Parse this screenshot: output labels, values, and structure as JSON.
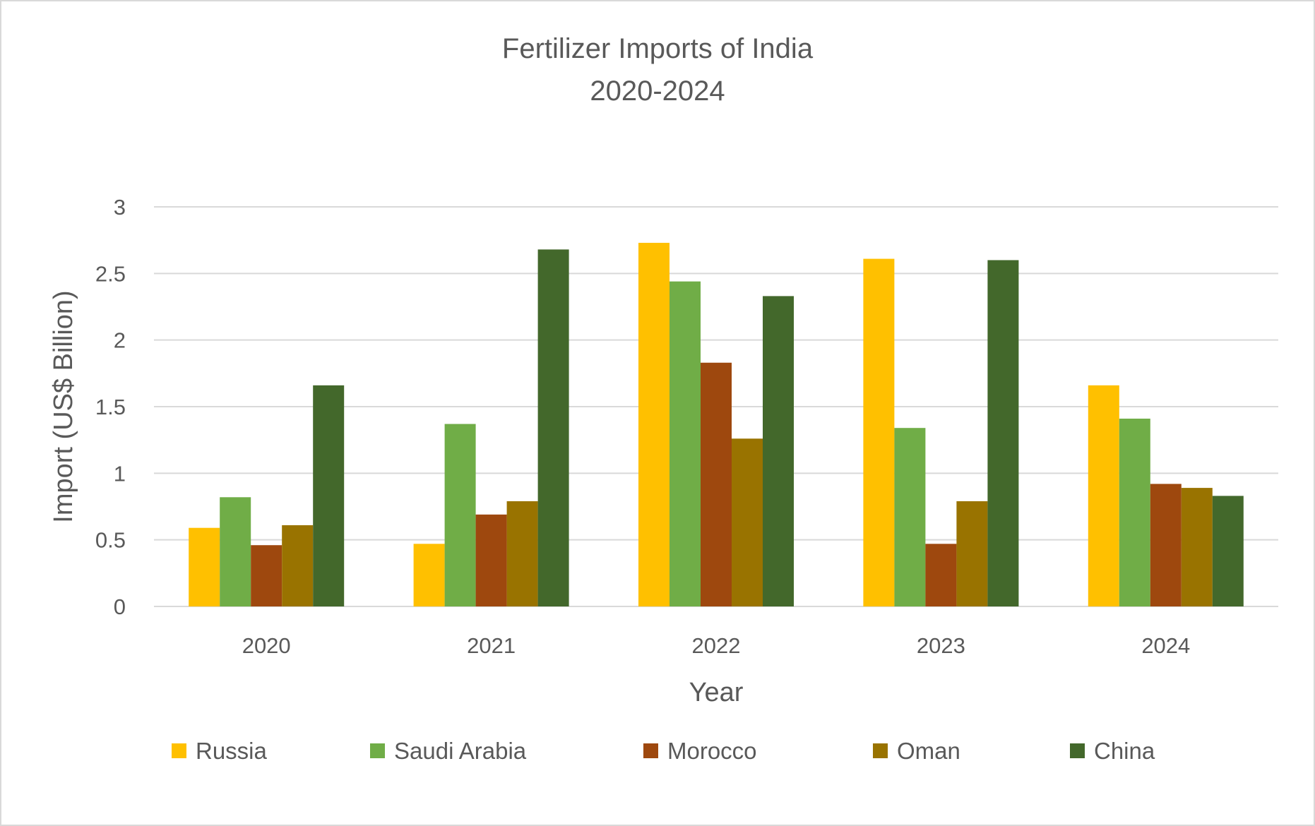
{
  "chart_data": {
    "type": "bar",
    "title": "Fertilizer Imports of India",
    "subtitle": "2020-2024",
    "xlabel": "Year",
    "ylabel": "Import (US$ Billion)",
    "ylim": [
      0,
      3
    ],
    "yticks": [
      0,
      0.5,
      1,
      1.5,
      2,
      2.5,
      3
    ],
    "grid": true,
    "legend_position": "bottom",
    "categories": [
      "2020",
      "2021",
      "2022",
      "2023",
      "2024"
    ],
    "series": [
      {
        "name": "Russia",
        "color": "#FFC000",
        "values": [
          0.59,
          0.47,
          2.73,
          2.61,
          1.66
        ]
      },
      {
        "name": "Saudi Arabia",
        "color": "#70AD47",
        "values": [
          0.82,
          1.37,
          2.44,
          1.34,
          1.41
        ]
      },
      {
        "name": "Morocco",
        "color": "#9E480E",
        "values": [
          0.46,
          0.69,
          1.83,
          0.47,
          0.92
        ]
      },
      {
        "name": "Oman",
        "color": "#997300",
        "values": [
          0.61,
          0.79,
          1.26,
          0.79,
          0.89
        ]
      },
      {
        "name": "China",
        "color": "#43682B",
        "values": [
          1.66,
          2.68,
          2.33,
          2.6,
          0.83
        ]
      }
    ]
  }
}
